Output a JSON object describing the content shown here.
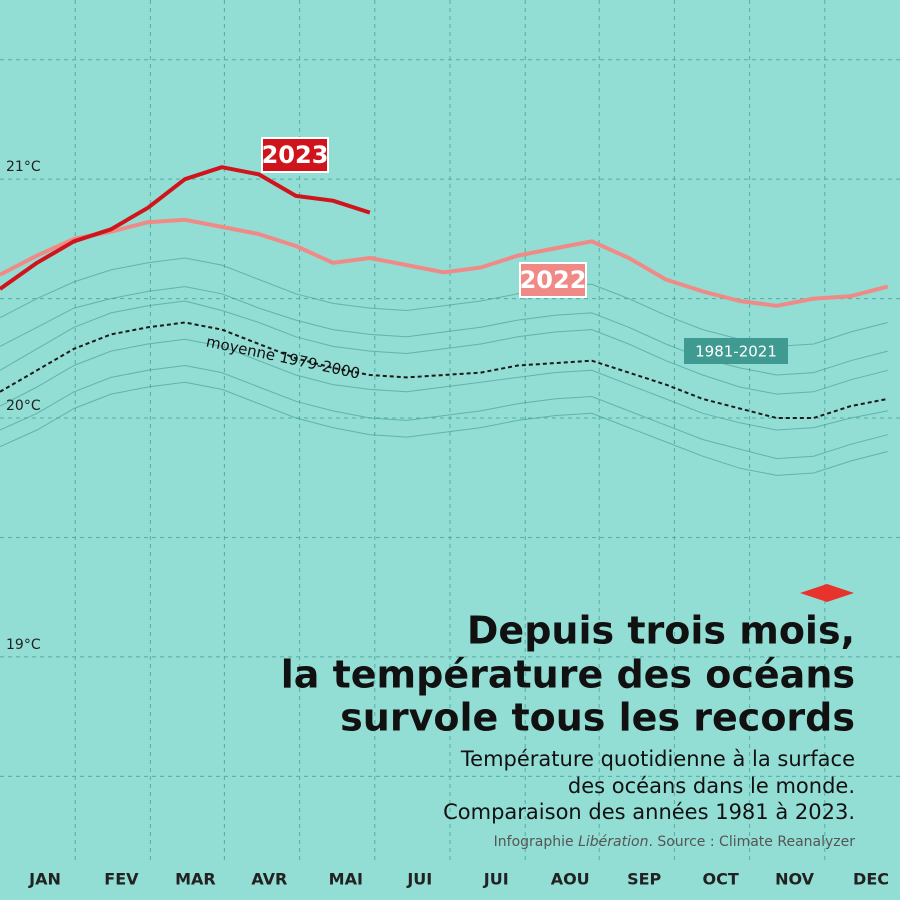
{
  "chart_data": {
    "type": "line",
    "title": [
      "Depuis trois mois,",
      "la température des océans",
      "survole tous les records"
    ],
    "subtitle": [
      "Température quotidienne à la surface",
      "des océans dans le monde.",
      "Comparaison des années 1981 à 2023."
    ],
    "source": [
      "Infographie ",
      "Libération",
      ". Source : Climate Reanalyzer"
    ],
    "annotation": "moyenne 1979-2000",
    "x": [
      0,
      15,
      30,
      45,
      60,
      75,
      90,
      105,
      120,
      135,
      150,
      165,
      180,
      195,
      210,
      225,
      240,
      255,
      270,
      285,
      300,
      315,
      330,
      345,
      360
    ],
    "xlim": [
      0,
      365
    ],
    "xticks": [
      {
        "value": 15,
        "label": "JAN"
      },
      {
        "value": 46,
        "label": "FEV"
      },
      {
        "value": 76,
        "label": "MAR"
      },
      {
        "value": 106,
        "label": "AVR"
      },
      {
        "value": 137,
        "label": "MAI"
      },
      {
        "value": 167,
        "label": "JUI"
      },
      {
        "value": 198,
        "label": "JUI"
      },
      {
        "value": 228,
        "label": "AOU"
      },
      {
        "value": 258,
        "label": "SEP"
      },
      {
        "value": 289,
        "label": "OCT"
      },
      {
        "value": 319,
        "label": "NOV"
      },
      {
        "value": 350,
        "label": "DEC"
      }
    ],
    "ylim": [
      18.2,
      21.75
    ],
    "yticks": [
      {
        "value": 21,
        "label": "21°C"
      },
      {
        "value": 20,
        "label": "20°C"
      },
      {
        "value": 19,
        "label": "19°C"
      }
    ],
    "ygrid": [
      21.5,
      21,
      20.5,
      20,
      19.5,
      19,
      18.5
    ],
    "grid": true,
    "series": [
      {
        "name": "1981-2021",
        "color": "#3f9a91",
        "lines": [
          [
            20.3,
            20.38,
            20.46,
            20.5,
            20.53,
            20.55,
            20.52,
            20.46,
            20.41,
            20.37,
            20.35,
            20.34,
            20.36,
            20.38,
            20.41,
            20.43,
            20.44,
            20.38,
            20.31,
            20.25,
            20.21,
            20.18,
            20.19,
            20.24,
            20.28
          ],
          [
            20.2,
            20.29,
            20.38,
            20.44,
            20.47,
            20.49,
            20.45,
            20.4,
            20.34,
            20.3,
            20.28,
            20.27,
            20.29,
            20.31,
            20.34,
            20.36,
            20.37,
            20.31,
            20.24,
            20.18,
            20.13,
            20.1,
            20.11,
            20.16,
            20.2
          ],
          [
            20.05,
            20.13,
            20.22,
            20.28,
            20.31,
            20.33,
            20.3,
            20.24,
            20.18,
            20.14,
            20.12,
            20.11,
            20.13,
            20.15,
            20.17,
            20.19,
            20.2,
            20.14,
            20.08,
            20.02,
            19.98,
            19.95,
            19.96,
            20.0,
            20.03
          ],
          [
            19.95,
            20.02,
            20.11,
            20.17,
            20.2,
            20.22,
            20.19,
            20.13,
            20.07,
            20.03,
            20.0,
            19.99,
            20.01,
            20.03,
            20.06,
            20.08,
            20.09,
            20.03,
            19.97,
            19.91,
            19.87,
            19.83,
            19.84,
            19.89,
            19.93
          ],
          [
            19.88,
            19.95,
            20.04,
            20.1,
            20.13,
            20.15,
            20.12,
            20.06,
            20.0,
            19.96,
            19.93,
            19.92,
            19.94,
            19.96,
            19.99,
            20.01,
            20.02,
            19.96,
            19.9,
            19.84,
            19.79,
            19.76,
            19.77,
            19.82,
            19.86
          ],
          [
            20.42,
            20.5,
            20.57,
            20.62,
            20.65,
            20.67,
            20.64,
            20.58,
            20.52,
            20.48,
            20.46,
            20.45,
            20.47,
            20.49,
            20.52,
            20.55,
            20.56,
            20.5,
            20.43,
            20.37,
            20.33,
            20.3,
            20.31,
            20.36,
            20.4
          ]
        ]
      },
      {
        "name": "moyenne 1979-2000",
        "color": "#1a1a1a",
        "dashed": true,
        "values": [
          20.11,
          20.2,
          20.29,
          20.35,
          20.38,
          20.4,
          20.37,
          20.31,
          20.25,
          20.21,
          20.18,
          20.17,
          20.18,
          20.19,
          20.22,
          20.23,
          20.24,
          20.19,
          20.14,
          20.08,
          20.04,
          20.0,
          20.0,
          20.05,
          20.08
        ]
      },
      {
        "name": "2022",
        "color": "#f08a86",
        "values": [
          20.6,
          20.68,
          20.75,
          20.78,
          20.82,
          20.83,
          20.8,
          20.77,
          20.72,
          20.65,
          20.67,
          20.64,
          20.61,
          20.63,
          20.68,
          20.71,
          20.74,
          20.67,
          20.58,
          20.53,
          20.49,
          20.47,
          20.5,
          20.51,
          20.55
        ]
      },
      {
        "name": "2023",
        "color": "#d0141c",
        "values": [
          20.54,
          20.65,
          20.74,
          20.79,
          20.88,
          21.0,
          21.05,
          21.02,
          20.93,
          20.91,
          20.86,
          null,
          null,
          null,
          null,
          null,
          null,
          null,
          null,
          null,
          null,
          null,
          null,
          null,
          null
        ]
      }
    ]
  }
}
